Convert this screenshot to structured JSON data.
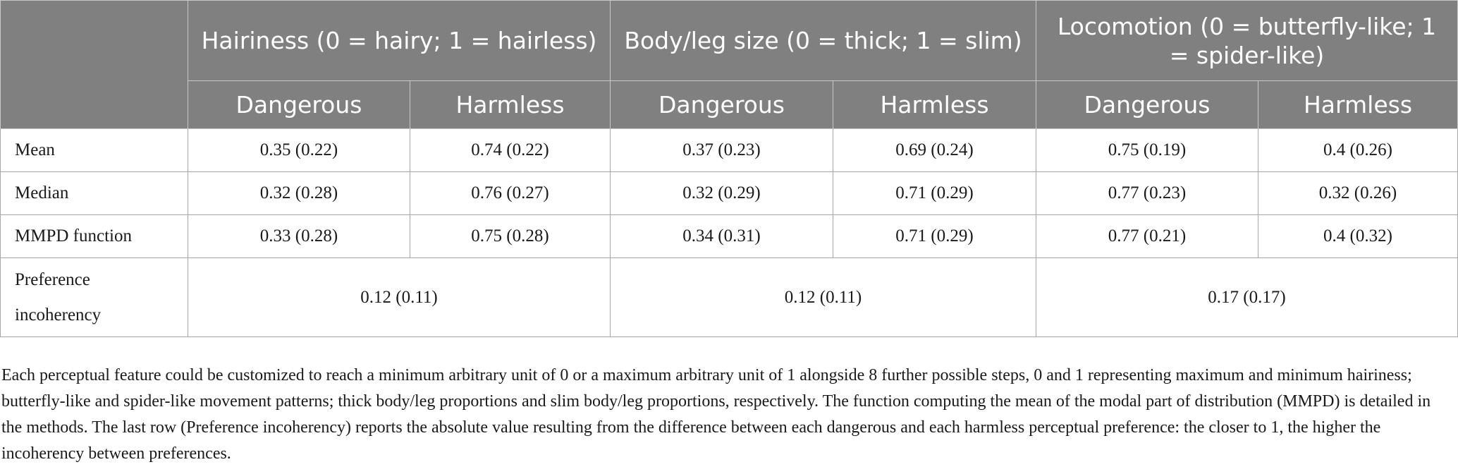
{
  "table": {
    "groups": [
      "Hairiness (0 = hairy; 1 = hairless)",
      "Body/leg size (0 = thick; 1 = slim)",
      "Locomotion (0 = butterfly-like; 1 = spider-like)"
    ],
    "subheaders": [
      "Dangerous",
      "Harmless",
      "Dangerous",
      "Harmless",
      "Dangerous",
      "Harmless"
    ],
    "rows": [
      {
        "label": "Mean",
        "values": [
          "0.35 (0.22)",
          "0.74 (0.22)",
          "0.37 (0.23)",
          "0.69 (0.24)",
          "0.75 (0.19)",
          "0.4 (0.26)"
        ]
      },
      {
        "label": "Median",
        "values": [
          "0.32 (0.28)",
          "0.76 (0.27)",
          "0.32 (0.29)",
          "0.71 (0.29)",
          "0.77 (0.23)",
          "0.32 (0.26)"
        ]
      },
      {
        "label": "MMPD function",
        "values": [
          "0.33 (0.28)",
          "0.75 (0.28)",
          "0.34 (0.31)",
          "0.71 (0.29)",
          "0.77 (0.21)",
          "0.4 (0.32)"
        ]
      }
    ],
    "incoherency": {
      "label": "Preference incoherency",
      "values": [
        "0.12 (0.11)",
        "0.12 (0.11)",
        "0.17 (0.17)"
      ]
    }
  },
  "footnote": "Each perceptual feature could be customized to reach a minimum arbitrary unit of 0 or a maximum arbitrary unit of 1 alongside 8 further possible steps, 0 and 1 representing maximum and minimum hairiness; butterfly-like and spider-like movement patterns; thick body/leg proportions and slim body/leg proportions, respectively. The function computing the mean of the modal part of distribution (MMPD) is detailed in the methods. The last row (Preference incoherency) reports the absolute value resulting from the difference between each dangerous and each harmless perceptual preference: the closer to 1, the higher the incoherency between preferences."
}
